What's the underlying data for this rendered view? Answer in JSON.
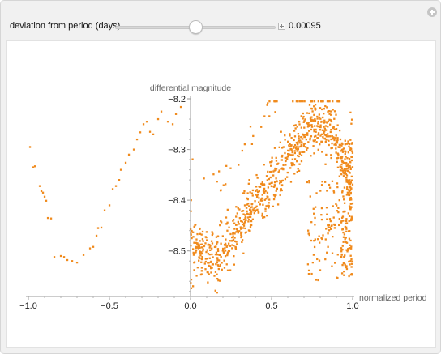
{
  "control": {
    "label": "deviation from period (days)",
    "value_text": "0.00095",
    "slider_fraction": 0.5
  },
  "chart_data": {
    "type": "scatter",
    "xlabel": "normalized period",
    "ylabel": "differential magnitude",
    "xlim": [
      -1.0,
      1.0
    ],
    "ylim": [
      -8.2,
      -8.59
    ],
    "y_axis_inverted": true,
    "x_ticks": [
      "-1.0",
      "-0.5",
      "0.0",
      "0.5",
      "1.0"
    ],
    "y_ticks": [
      "-8.2",
      "-8.3",
      "-8.4",
      "-8.5"
    ],
    "marker_color": "#f08a1c",
    "series": [
      {
        "x": [
          -0.99,
          -0.97,
          -0.96,
          -0.93,
          -0.92,
          -0.91,
          -0.9,
          -0.89,
          -0.88,
          -0.86,
          -0.84,
          -0.8,
          -0.78,
          -0.76,
          -0.73,
          -0.7,
          -0.66,
          -0.62,
          -0.6,
          -0.58,
          -0.57,
          -0.55,
          -0.53,
          -0.5,
          -0.48,
          -0.46,
          -0.44,
          -0.43,
          -0.4,
          -0.38,
          -0.35,
          -0.33,
          -0.31,
          -0.29,
          -0.27,
          -0.25,
          -0.23,
          -0.2,
          -0.18,
          -0.14,
          -0.11,
          -0.09,
          -0.06
        ],
        "y": [
          -8.295,
          -8.335,
          -8.333,
          -8.372,
          -8.382,
          -8.385,
          -8.393,
          -8.401,
          -8.435,
          -8.436,
          -8.512,
          -8.51,
          -8.512,
          -8.518,
          -8.52,
          -8.523,
          -8.508,
          -8.495,
          -8.492,
          -8.47,
          -8.455,
          -8.454,
          -8.42,
          -8.41,
          -8.378,
          -8.372,
          -8.36,
          -8.34,
          -8.326,
          -8.31,
          -8.3,
          -8.28,
          -8.266,
          -8.25,
          -8.245,
          -8.265,
          -8.27,
          -8.24,
          -8.225,
          -8.245,
          -8.25,
          -8.23,
          -8.216
        ]
      }
    ]
  }
}
